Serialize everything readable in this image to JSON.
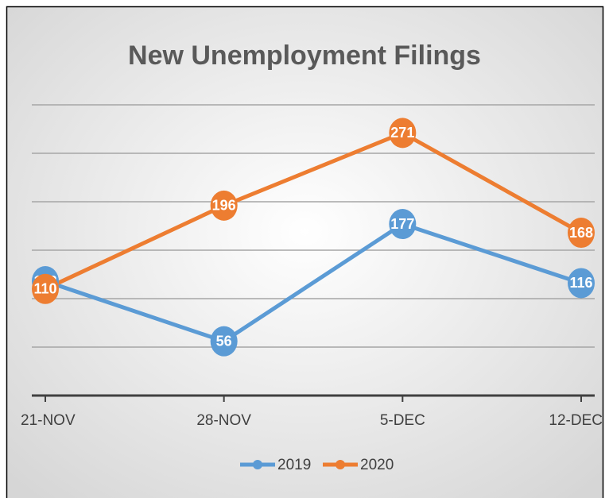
{
  "chart_data": {
    "type": "line",
    "title": "New Unemployment Filings",
    "categories": [
      "21-NOV",
      "28-NOV",
      "5-DEC",
      "12-DEC"
    ],
    "series": [
      {
        "name": "2019",
        "color": "#5b9bd5",
        "values": [
          118,
          56,
          177,
          116
        ]
      },
      {
        "name": "2020",
        "color": "#ed7d31",
        "values": [
          110,
          196,
          271,
          168
        ]
      }
    ],
    "ylim": [
      0,
      300
    ],
    "yticks": [
      0,
      50,
      100,
      150,
      200,
      250,
      300
    ],
    "grid": true,
    "legend": "bottom"
  }
}
